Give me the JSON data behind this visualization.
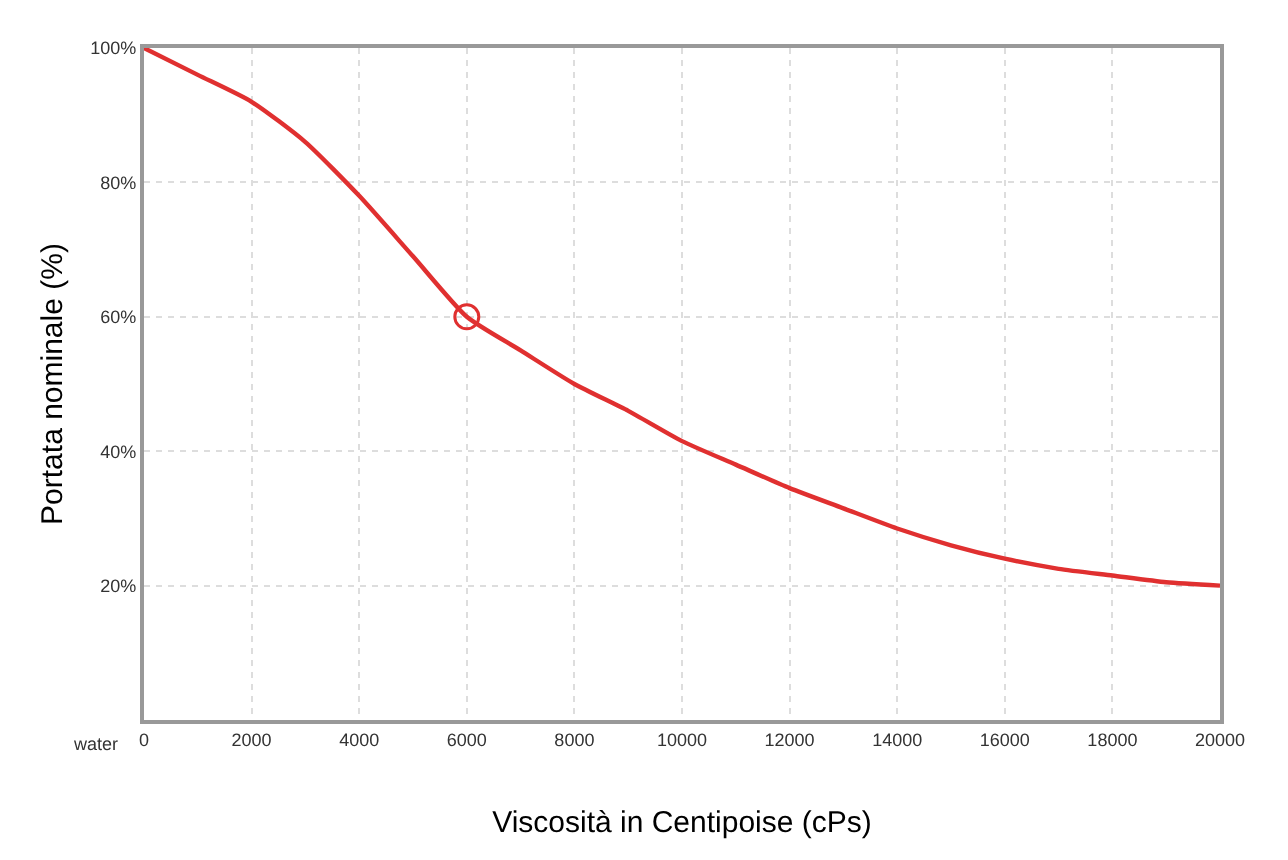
{
  "chart_data": {
    "type": "line",
    "xlabel": "Viscosità in Centipoise (cPs)",
    "ylabel": "Portata nominale (%)",
    "annotations": [
      "water"
    ],
    "x": [
      0,
      1000,
      2000,
      3000,
      4000,
      5000,
      6000,
      7000,
      8000,
      9000,
      10000,
      11000,
      12000,
      13000,
      14000,
      15000,
      16000,
      17000,
      18000,
      19000,
      20000
    ],
    "series": [
      {
        "color": "#e03030",
        "values": [
          100,
          96,
          92,
          86,
          78,
          69,
          60,
          55,
          50,
          46,
          41.5,
          38,
          34.5,
          31.5,
          28.5,
          26,
          24,
          22.5,
          21.5,
          20.5,
          20
        ]
      },
      {
        "type": "scatter",
        "marker": "circle",
        "color": "#e03030",
        "x": [
          6000
        ],
        "values": [
          60
        ]
      }
    ],
    "xlim": [
      0,
      20000
    ],
    "xticks": [
      0,
      2000,
      4000,
      6000,
      8000,
      10000,
      12000,
      14000,
      16000,
      18000,
      20000
    ],
    "ylim": [
      0,
      100
    ],
    "yticks": [
      {
        "value": 20,
        "label": "20%"
      },
      {
        "value": 40,
        "label": "40%"
      },
      {
        "value": 60,
        "label": "60%"
      },
      {
        "value": 80,
        "label": "80%"
      },
      {
        "value": 100,
        "label": "100%"
      }
    ],
    "grid": true,
    "marker": "none",
    "line_style": "solid"
  }
}
